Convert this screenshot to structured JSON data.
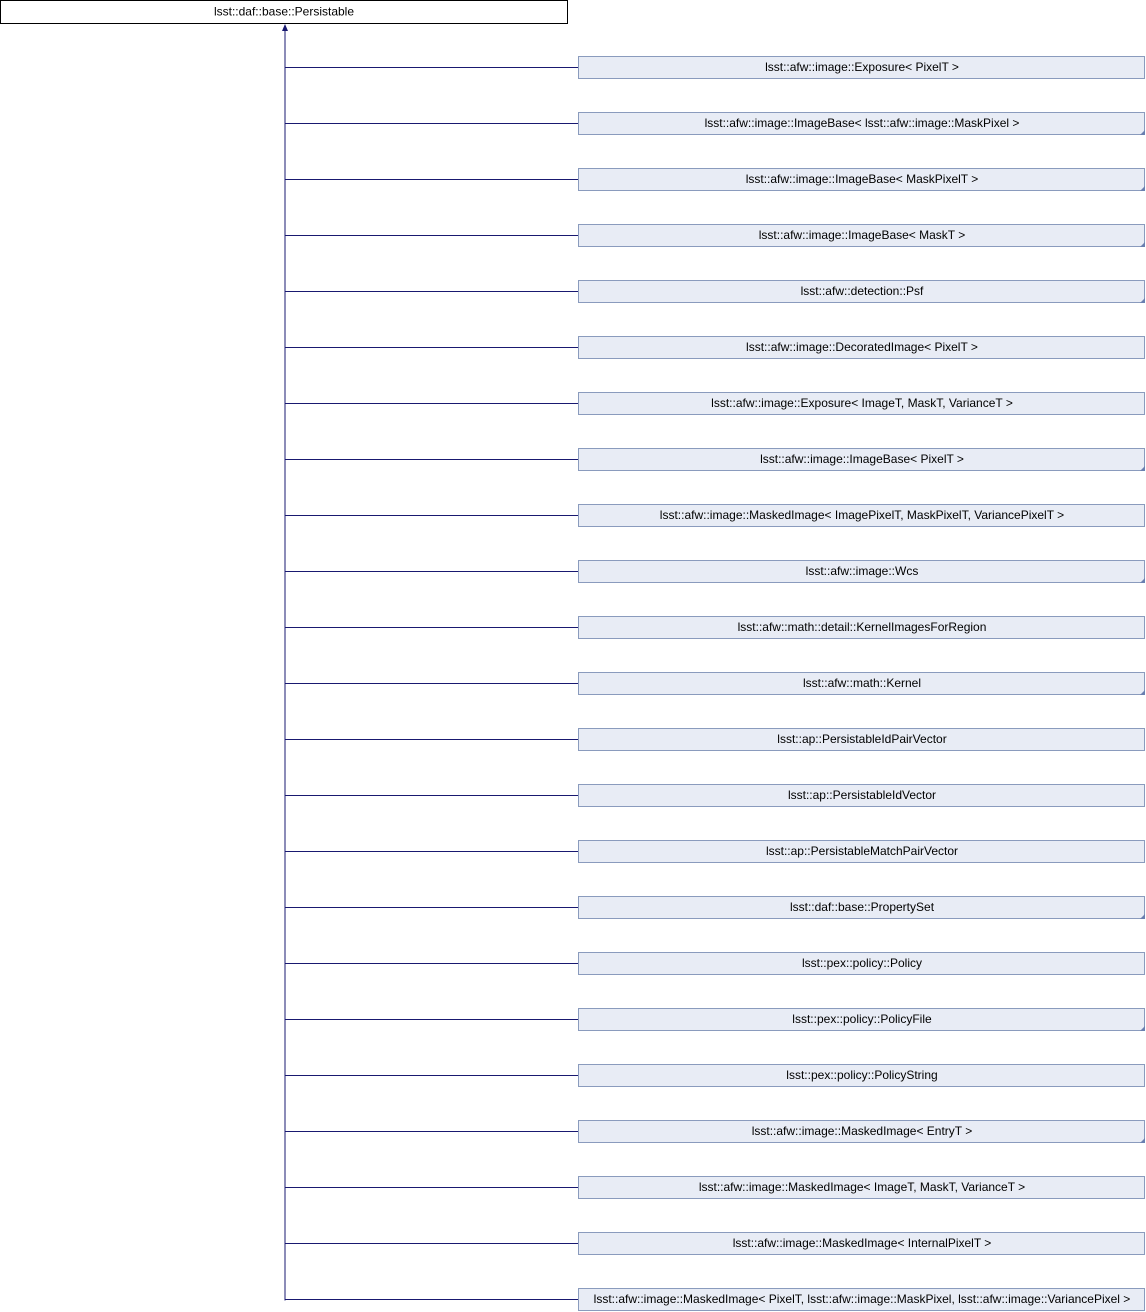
{
  "root": {
    "label": "lsst::daf::base::Persistable"
  },
  "children": [
    {
      "label": "lsst::afw::image::Exposure< PixelT >",
      "has_subclasses": false
    },
    {
      "label": "lsst::afw::image::ImageBase< lsst::afw::image::MaskPixel >",
      "has_subclasses": true
    },
    {
      "label": "lsst::afw::image::ImageBase< MaskPixelT >",
      "has_subclasses": true
    },
    {
      "label": "lsst::afw::image::ImageBase< MaskT >",
      "has_subclasses": true
    },
    {
      "label": "lsst::afw::detection::Psf",
      "has_subclasses": true
    },
    {
      "label": "lsst::afw::image::DecoratedImage< PixelT >",
      "has_subclasses": false
    },
    {
      "label": "lsst::afw::image::Exposure< ImageT, MaskT, VarianceT >",
      "has_subclasses": false
    },
    {
      "label": "lsst::afw::image::ImageBase< PixelT >",
      "has_subclasses": true
    },
    {
      "label": "lsst::afw::image::MaskedImage< ImagePixelT, MaskPixelT, VariancePixelT >",
      "has_subclasses": false
    },
    {
      "label": "lsst::afw::image::Wcs",
      "has_subclasses": true
    },
    {
      "label": "lsst::afw::math::detail::KernelImagesForRegion",
      "has_subclasses": false
    },
    {
      "label": "lsst::afw::math::Kernel",
      "has_subclasses": true
    },
    {
      "label": "lsst::ap::PersistableIdPairVector",
      "has_subclasses": false
    },
    {
      "label": "lsst::ap::PersistableIdVector",
      "has_subclasses": false
    },
    {
      "label": "lsst::ap::PersistableMatchPairVector",
      "has_subclasses": false
    },
    {
      "label": "lsst::daf::base::PropertySet",
      "has_subclasses": true
    },
    {
      "label": "lsst::pex::policy::Policy",
      "has_subclasses": false
    },
    {
      "label": "lsst::pex::policy::PolicyFile",
      "has_subclasses": true
    },
    {
      "label": "lsst::pex::policy::PolicyString",
      "has_subclasses": false
    },
    {
      "label": "lsst::afw::image::MaskedImage< EntryT >",
      "has_subclasses": true
    },
    {
      "label": "lsst::afw::image::MaskedImage< ImageT, MaskT, VarianceT >",
      "has_subclasses": false
    },
    {
      "label": "lsst::afw::image::MaskedImage< InternalPixelT >",
      "has_subclasses": false
    },
    {
      "label": "lsst::afw::image::MaskedImage< PixelT, lsst::afw::image::MaskPixel, lsst::afw::image::VariancePixel >",
      "has_subclasses": false
    }
  ]
}
